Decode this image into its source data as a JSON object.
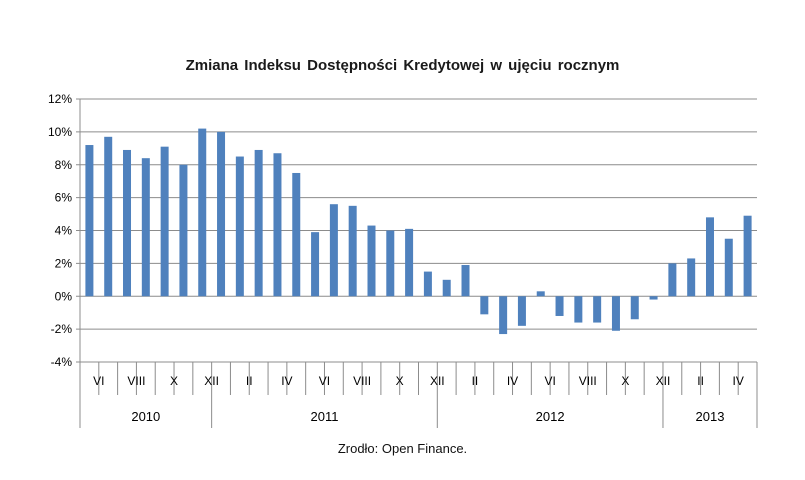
{
  "chart_data": {
    "type": "bar",
    "title": "Zmiana Indeksu Dostępności  Kredytowej  w ujęciu rocznym",
    "source": "Zrodło: Open Finance.",
    "ylim": [
      -4,
      12
    ],
    "yticks": [
      "12%",
      "10%",
      "8%",
      "6%",
      "4%",
      "2%",
      "0%",
      "-2%",
      "-4%"
    ],
    "ytick_values": [
      12,
      10,
      8,
      6,
      4,
      2,
      0,
      -2,
      -4
    ],
    "grid": true,
    "bar_color": "#4f81bd",
    "categories": [
      "VI",
      "",
      "VIII",
      "",
      "X",
      "",
      "XII",
      "",
      "II",
      "",
      "IV",
      "",
      "VI",
      "",
      "VIII",
      "",
      "X",
      "",
      "XII",
      "",
      "II",
      "",
      "IV",
      "",
      "VI",
      "",
      "VIII",
      "",
      "X",
      "",
      "XII",
      "",
      "II",
      "",
      "IV",
      ""
    ],
    "values": [
      9.2,
      9.7,
      8.9,
      8.4,
      9.1,
      8.0,
      10.2,
      10.0,
      8.5,
      8.9,
      8.7,
      7.5,
      3.9,
      5.6,
      5.5,
      4.3,
      4.0,
      4.1,
      1.5,
      1.0,
      1.9,
      -1.1,
      -2.3,
      -1.8,
      0.3,
      -1.2,
      -1.6,
      -1.6,
      -2.1,
      -1.4,
      -0.2,
      2.0,
      2.3,
      4.8,
      3.5,
      4.9
    ],
    "years": [
      {
        "label": "2010",
        "count": 7
      },
      {
        "label": "2011",
        "count": 12
      },
      {
        "label": "2012",
        "count": 12
      },
      {
        "label": "2013",
        "count": 5
      }
    ]
  }
}
